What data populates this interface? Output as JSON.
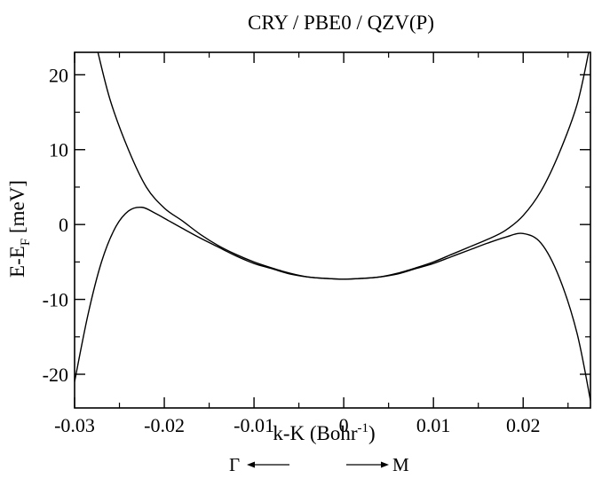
{
  "chart_data": {
    "type": "line",
    "title": "CRY / PBE0 / QZV(P)",
    "xlabel": {
      "main": "k-K (Bohr",
      "sup": "-1",
      "end": ")"
    },
    "ylabel": {
      "main": "E-E",
      "sub": "F",
      "end": " [meV]"
    },
    "xlim": [
      -0.03,
      0.0275
    ],
    "ylim": [
      -24.5,
      23
    ],
    "xticks": [
      -0.03,
      -0.02,
      -0.01,
      0,
      0.01,
      0.02
    ],
    "xtick_labels": [
      "-0.03",
      "-0.02",
      "-0.01",
      "0",
      "0.01",
      "0.02"
    ],
    "yticks": [
      -20,
      -10,
      0,
      10,
      20
    ],
    "ytick_labels": [
      "-20",
      "-10",
      "0",
      "10",
      "20"
    ],
    "grid": false,
    "direction_labels": {
      "left": "Γ",
      "right": "M"
    },
    "series": [
      {
        "x": [
          -0.0274,
          -0.026,
          -0.024,
          -0.022,
          -0.02,
          -0.018,
          -0.016,
          -0.014,
          -0.012,
          -0.01,
          -0.008,
          -0.006,
          -0.004,
          -0.002,
          0.0,
          0.002,
          0.004,
          0.006,
          0.008,
          0.01,
          0.012,
          0.014,
          0.016,
          0.018,
          0.02,
          0.022,
          0.024,
          0.026,
          0.0273
        ],
        "y": [
          23.0,
          16.5,
          10.0,
          5.0,
          2.2,
          0.5,
          -1.3,
          -2.8,
          -4.0,
          -5.0,
          -5.8,
          -6.5,
          -7.0,
          -7.2,
          -7.3,
          -7.2,
          -7.0,
          -6.5,
          -5.8,
          -5.0,
          -4.0,
          -3.0,
          -2.0,
          -0.8,
          1.2,
          4.5,
          9.5,
          16.0,
          23.0
        ]
      },
      {
        "x": [
          -0.03,
          -0.0285,
          -0.027,
          -0.0255,
          -0.024,
          -0.0225,
          -0.021,
          -0.0195,
          -0.018,
          -0.016,
          -0.014,
          -0.012,
          -0.01,
          -0.008,
          -0.006,
          -0.004,
          -0.002,
          0.0,
          0.002,
          0.004,
          0.006,
          0.008,
          0.01,
          0.012,
          0.014,
          0.016,
          0.018,
          0.02,
          0.022,
          0.024,
          0.026,
          0.0275
        ],
        "y": [
          -21.0,
          -12.0,
          -5.0,
          -0.5,
          1.8,
          2.3,
          1.5,
          0.5,
          -0.5,
          -1.8,
          -3.0,
          -4.2,
          -5.2,
          -5.9,
          -6.6,
          -7.0,
          -7.2,
          -7.3,
          -7.2,
          -7.0,
          -6.6,
          -5.9,
          -5.2,
          -4.3,
          -3.4,
          -2.5,
          -1.7,
          -1.2,
          -2.5,
          -7.0,
          -14.5,
          -23.5
        ]
      }
    ]
  }
}
